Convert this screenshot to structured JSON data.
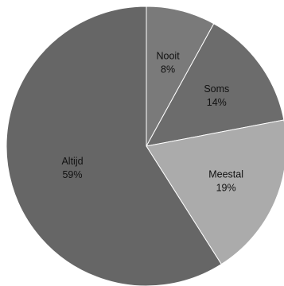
{
  "chart_data": {
    "type": "pie",
    "title": "",
    "slices": [
      {
        "label": "Nooit",
        "value": 8,
        "pct_label": "8%",
        "color": "#7a7a7a",
        "text_color": "#111111"
      },
      {
        "label": "Soms",
        "value": 14,
        "pct_label": "14%",
        "color": "#6c6c6c",
        "text_color": "#111111"
      },
      {
        "label": "Meestal",
        "value": 19,
        "pct_label": "19%",
        "color": "#ababab",
        "text_color": "#111111"
      },
      {
        "label": "Altijd",
        "value": 59,
        "pct_label": "59%",
        "color": "#666666",
        "text_color": "#111111"
      }
    ],
    "start": "12 o'clock",
    "direction": "clockwise",
    "legend": "none",
    "border_color": "#ffffff"
  }
}
